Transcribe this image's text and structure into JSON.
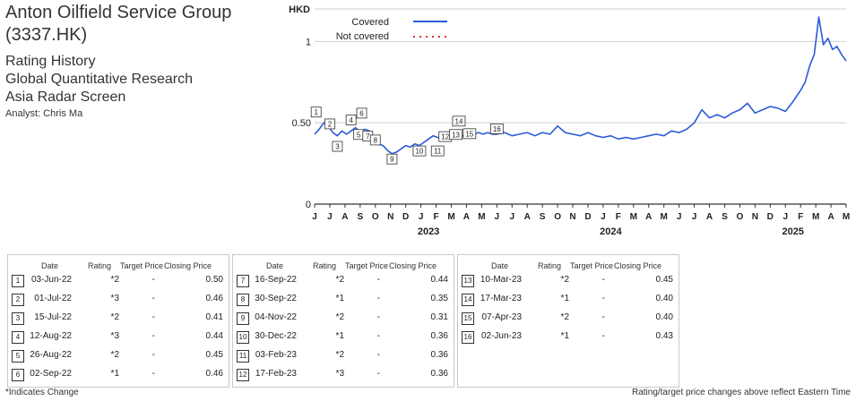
{
  "header": {
    "company_line1": "Anton Oilfield Service Group",
    "company_line2": "(3337.HK)",
    "line1": "Rating History",
    "line2": "Global Quantitative Research",
    "line3": "Asia Radar Screen",
    "analyst": "Analyst: Chris Ma"
  },
  "chart_data": {
    "type": "line",
    "ylabel": "HKD",
    "ylim": [
      0,
      1.2
    ],
    "yticks": [
      0,
      0.5,
      1
    ],
    "ytick_labels": [
      "0",
      "0.50",
      "1"
    ],
    "grid": true,
    "legend": "top-left",
    "legend_entries": [
      {
        "label": "Covered",
        "style": "solid",
        "color": "#2a5bd7"
      },
      {
        "label": "Not covered",
        "style": "dotted",
        "color": "#e0302a"
      }
    ],
    "x_month_labels": [
      "J",
      "J",
      "A",
      "S",
      "O",
      "N",
      "D",
      "J",
      "F",
      "M",
      "A",
      "M",
      "J",
      "J",
      "A",
      "S",
      "O",
      "N",
      "D",
      "J",
      "F",
      "M",
      "A",
      "M",
      "J",
      "J",
      "A",
      "S",
      "O",
      "N",
      "D",
      "J",
      "F",
      "M",
      "A",
      "M"
    ],
    "x_year_labels": [
      "2023",
      "2024",
      "2025"
    ],
    "series": [
      {
        "name": "Covered",
        "color": "#2a5bd7",
        "x": [
          0,
          0.3,
          0.6,
          0.9,
          1.2,
          1.5,
          1.8,
          2.1,
          2.4,
          2.7,
          3.0,
          3.3,
          3.6,
          3.9,
          4.2,
          4.5,
          4.8,
          5.1,
          5.4,
          5.7,
          6.0,
          6.3,
          6.6,
          6.9,
          7.2,
          7.5,
          7.8,
          8.1,
          8.4,
          8.7,
          9.0,
          9.3,
          9.6,
          9.9,
          10.2,
          10.5,
          10.8,
          11.1,
          11.4,
          11.7,
          12.0,
          12.5,
          13,
          13.5,
          14,
          14.5,
          15,
          15.5,
          16,
          16.5,
          17,
          17.5,
          18,
          18.5,
          19,
          19.5,
          20,
          20.5,
          21,
          21.5,
          22,
          22.5,
          23,
          23.5,
          24,
          24.5,
          25,
          25.5,
          26,
          26.5,
          27,
          27.5,
          28,
          28.5,
          29,
          29.5,
          30,
          30.5,
          31,
          31.5,
          32,
          32.3,
          32.6,
          32.9,
          33.2,
          33.5,
          33.8,
          34.1,
          34.4,
          34.7,
          35.0
        ],
        "values": [
          0.43,
          0.46,
          0.5,
          0.48,
          0.44,
          0.42,
          0.45,
          0.43,
          0.45,
          0.47,
          0.44,
          0.46,
          0.45,
          0.38,
          0.37,
          0.36,
          0.33,
          0.31,
          0.32,
          0.34,
          0.36,
          0.35,
          0.37,
          0.36,
          0.38,
          0.4,
          0.42,
          0.41,
          0.4,
          0.43,
          0.42,
          0.44,
          0.43,
          0.41,
          0.42,
          0.43,
          0.44,
          0.43,
          0.44,
          0.43,
          0.43,
          0.44,
          0.42,
          0.43,
          0.44,
          0.42,
          0.44,
          0.43,
          0.48,
          0.44,
          0.43,
          0.42,
          0.44,
          0.42,
          0.41,
          0.42,
          0.4,
          0.41,
          0.4,
          0.41,
          0.42,
          0.43,
          0.42,
          0.45,
          0.44,
          0.46,
          0.5,
          0.58,
          0.53,
          0.55,
          0.53,
          0.56,
          0.58,
          0.62,
          0.56,
          0.58,
          0.6,
          0.59,
          0.57,
          0.63,
          0.7,
          0.75,
          0.85,
          0.92,
          1.15,
          0.98,
          1.02,
          0.95,
          0.97,
          0.92,
          0.88
        ]
      }
    ],
    "markers": [
      {
        "n": "1",
        "x": 0.1,
        "y": 0.5
      },
      {
        "n": "2",
        "x": 1.0,
        "y": 0.46
      },
      {
        "n": "3",
        "x": 1.5,
        "y": 0.41
      },
      {
        "n": "4",
        "x": 2.4,
        "y": 0.44
      },
      {
        "n": "5",
        "x": 2.9,
        "y": 0.45
      },
      {
        "n": "6",
        "x": 3.1,
        "y": 0.46
      },
      {
        "n": "7",
        "x": 3.5,
        "y": 0.44
      },
      {
        "n": "8",
        "x": 4.0,
        "y": 0.35
      },
      {
        "n": "9",
        "x": 5.1,
        "y": 0.31
      },
      {
        "n": "10",
        "x": 6.9,
        "y": 0.36
      },
      {
        "n": "11",
        "x": 8.1,
        "y": 0.36
      },
      {
        "n": "12",
        "x": 8.6,
        "y": 0.36
      },
      {
        "n": "13",
        "x": 9.3,
        "y": 0.45
      },
      {
        "n": "14",
        "x": 9.5,
        "y": 0.4
      },
      {
        "n": "15",
        "x": 10.2,
        "y": 0.4
      },
      {
        "n": "16",
        "x": 12.0,
        "y": 0.43
      }
    ]
  },
  "table_headers": {
    "date": "Date",
    "rating": "Rating",
    "target": "Target Price",
    "close": "Closing Price"
  },
  "tables": [
    [
      {
        "n": "1",
        "date": "03-Jun-22",
        "rating": "*2",
        "target": "-",
        "close": "0.50"
      },
      {
        "n": "2",
        "date": "01-Jul-22",
        "rating": "*3",
        "target": "-",
        "close": "0.46"
      },
      {
        "n": "3",
        "date": "15-Jul-22",
        "rating": "*2",
        "target": "-",
        "close": "0.41"
      },
      {
        "n": "4",
        "date": "12-Aug-22",
        "rating": "*3",
        "target": "-",
        "close": "0.44"
      },
      {
        "n": "5",
        "date": "26-Aug-22",
        "rating": "*2",
        "target": "-",
        "close": "0.45"
      },
      {
        "n": "6",
        "date": "02-Sep-22",
        "rating": "*1",
        "target": "-",
        "close": "0.46"
      }
    ],
    [
      {
        "n": "7",
        "date": "16-Sep-22",
        "rating": "*2",
        "target": "-",
        "close": "0.44"
      },
      {
        "n": "8",
        "date": "30-Sep-22",
        "rating": "*1",
        "target": "-",
        "close": "0.35"
      },
      {
        "n": "9",
        "date": "04-Nov-22",
        "rating": "*2",
        "target": "-",
        "close": "0.31"
      },
      {
        "n": "10",
        "date": "30-Dec-22",
        "rating": "*1",
        "target": "-",
        "close": "0.36"
      },
      {
        "n": "11",
        "date": "03-Feb-23",
        "rating": "*2",
        "target": "-",
        "close": "0.36"
      },
      {
        "n": "12",
        "date": "17-Feb-23",
        "rating": "*3",
        "target": "-",
        "close": "0.36"
      }
    ],
    [
      {
        "n": "13",
        "date": "10-Mar-23",
        "rating": "*2",
        "target": "-",
        "close": "0.45"
      },
      {
        "n": "14",
        "date": "17-Mar-23",
        "rating": "*1",
        "target": "-",
        "close": "0.40"
      },
      {
        "n": "15",
        "date": "07-Apr-23",
        "rating": "*2",
        "target": "-",
        "close": "0.40"
      },
      {
        "n": "16",
        "date": "02-Jun-23",
        "rating": "*1",
        "target": "-",
        "close": "0.43"
      }
    ]
  ],
  "footnote_left": "*Indicates Change",
  "footnote_right": "Rating/target price changes above reflect Eastern Time"
}
